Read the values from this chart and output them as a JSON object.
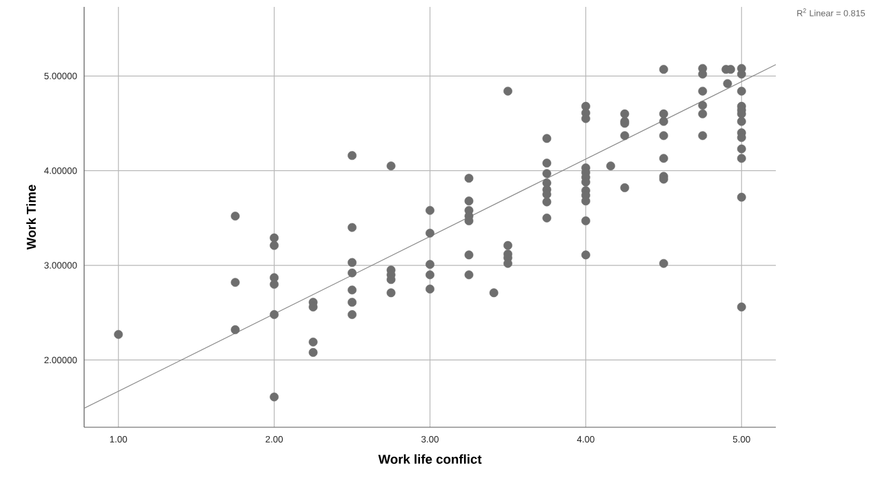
{
  "chart_data": {
    "type": "scatter",
    "xlabel": "Work life conflict",
    "ylabel": "Work Time",
    "annotations": [
      "R$^{2}$ Linear = 0.815"
    ],
    "xlim": [
      0.78,
      5.22
    ],
    "ylim": [
      1.29,
      5.73
    ],
    "xticks": [
      {
        "value": 1,
        "label": "1.00"
      },
      {
        "value": 2,
        "label": "2.00"
      },
      {
        "value": 3,
        "label": "3.00"
      },
      {
        "value": 4,
        "label": "4.00"
      },
      {
        "value": 5,
        "label": "5.00"
      }
    ],
    "yticks": [
      {
        "value": 2,
        "label": "2.00000"
      },
      {
        "value": 3,
        "label": "3.00000"
      },
      {
        "value": 4,
        "label": "4.00000"
      },
      {
        "value": 5,
        "label": "5.00000"
      }
    ],
    "grid": true,
    "series": [
      {
        "marker": "circle",
        "color": "#6e6e6e",
        "x": [
          1.0,
          1.75,
          1.75,
          1.75,
          2.0,
          2.0,
          2.0,
          2.0,
          2.0,
          2.0,
          2.25,
          2.25,
          2.25,
          2.25,
          2.5,
          2.5,
          2.5,
          2.5,
          2.5,
          2.5,
          2.5,
          2.75,
          2.75,
          2.75,
          2.75,
          2.75,
          3.0,
          3.0,
          3.0,
          3.0,
          3.0,
          3.25,
          3.25,
          3.25,
          3.25,
          3.25,
          3.25,
          3.25,
          3.41,
          3.5,
          3.5,
          3.5,
          3.5,
          3.5,
          3.75,
          3.75,
          3.75,
          3.75,
          3.75,
          3.75,
          3.75,
          3.75,
          4.0,
          4.0,
          4.0,
          4.0,
          4.0,
          4.0,
          4.0,
          4.0,
          4.0,
          4.0,
          4.0,
          4.0,
          4.16,
          4.25,
          4.25,
          4.25,
          4.25,
          4.25,
          4.5,
          4.5,
          4.5,
          4.5,
          4.5,
          4.5,
          4.5,
          4.5,
          4.75,
          4.75,
          4.75,
          4.75,
          4.75,
          4.75,
          4.91,
          4.9,
          4.93,
          5.0,
          5.0,
          5.0,
          5.0,
          5.0,
          5.0,
          5.0,
          5.0,
          5.0,
          5.0,
          5.0,
          5.0,
          5.0
        ],
        "values": [
          2.27,
          3.52,
          2.82,
          2.32,
          3.29,
          3.21,
          2.87,
          2.8,
          2.48,
          1.61,
          2.61,
          2.56,
          2.19,
          2.08,
          4.16,
          3.4,
          3.03,
          2.92,
          2.74,
          2.61,
          2.48,
          4.05,
          2.95,
          2.9,
          2.85,
          2.71,
          3.58,
          3.34,
          3.01,
          2.9,
          2.75,
          3.92,
          3.68,
          3.58,
          3.52,
          3.47,
          3.11,
          2.9,
          2.71,
          4.84,
          3.21,
          3.12,
          3.08,
          3.02,
          4.34,
          4.08,
          3.97,
          3.87,
          3.8,
          3.75,
          3.67,
          3.5,
          4.68,
          4.61,
          4.55,
          4.03,
          3.98,
          3.93,
          3.88,
          3.79,
          3.74,
          3.68,
          3.47,
          3.11,
          4.05,
          4.6,
          4.52,
          4.5,
          4.37,
          3.82,
          5.07,
          4.6,
          4.52,
          4.37,
          4.13,
          3.94,
          3.91,
          3.02,
          5.08,
          5.02,
          4.84,
          4.69,
          4.6,
          4.37,
          4.92,
          5.07,
          5.07,
          5.08,
          5.02,
          4.84,
          4.68,
          4.64,
          4.6,
          4.52,
          4.4,
          4.35,
          4.23,
          4.13,
          3.72,
          2.56
        ]
      },
      {
        "type": "line",
        "color": "#8a8a8a",
        "x": [
          0.78,
          5.22
        ],
        "values": [
          1.49,
          5.12
        ]
      }
    ]
  }
}
